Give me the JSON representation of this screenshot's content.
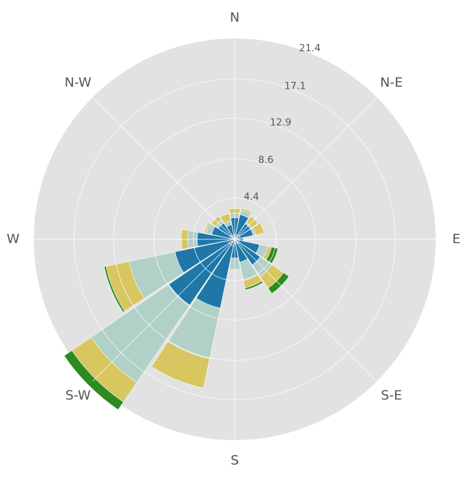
{
  "chart_data": {
    "type": "windrose",
    "direction_labels": [
      "E",
      "N-E",
      "N",
      "N-W",
      "W",
      "S-W",
      "S",
      "S-E"
    ],
    "radial_ticks": [
      "4.4",
      "8.6",
      "12.9",
      "17.1",
      "21.4"
    ],
    "radial_tick_values": [
      4.4,
      8.6,
      12.9,
      17.1,
      21.4
    ],
    "rmax": 21.4,
    "sectors": 16,
    "band_colors": [
      "#1b1b1b",
      "#2a6f97",
      "#1f77a8",
      "#b0d0c8",
      "#d8c660",
      "#2e8b22"
    ],
    "directions_deg": [
      0,
      22.5,
      45,
      67.5,
      90,
      112.5,
      135,
      157.5,
      180,
      202.5,
      225,
      247.5,
      270,
      292.5,
      315,
      337.5
    ],
    "cumulative": [
      [
        0.25,
        0.5,
        0.9,
        1.05,
        1.1,
        1.1
      ],
      [
        0.3,
        0.6,
        2.0,
        2.3,
        3.2,
        3.2
      ],
      [
        0.3,
        0.6,
        2.0,
        2.2,
        3.0,
        3.0
      ],
      [
        0.3,
        0.5,
        2.7,
        3.2,
        3.4,
        3.4
      ],
      [
        0.3,
        0.5,
        2.3,
        2.8,
        3.3,
        3.3
      ],
      [
        0.3,
        0.5,
        1.6,
        2.0,
        2.8,
        2.8
      ],
      [
        0.3,
        0.5,
        2.1,
        2.5,
        3.0,
        3.0
      ],
      [
        0.3,
        0.5,
        2.5,
        3.1,
        3.3,
        3.3
      ],
      [
        0.3,
        0.5,
        4.0,
        5.0,
        5.7,
        5.7
      ],
      [
        0.4,
        0.7,
        6.5,
        11.5,
        14.0,
        14.2
      ],
      [
        0.4,
        0.7,
        8.5,
        18.5,
        21.0,
        22.0
      ],
      [
        0.4,
        0.7,
        7.5,
        13.0,
        16.2,
        16.2
      ],
      [
        0.3,
        0.5,
        2.0,
        3.2,
        3.3,
        3.3
      ],
      [
        0.3,
        0.5,
        2.5,
        4.5,
        5.3,
        5.5
      ],
      [
        0.3,
        0.5,
        3.3,
        4.8,
        6.3,
        7.0
      ],
      [
        0.3,
        0.5,
        2.7,
        3.6,
        4.0,
        4.7
      ]
    ]
  }
}
